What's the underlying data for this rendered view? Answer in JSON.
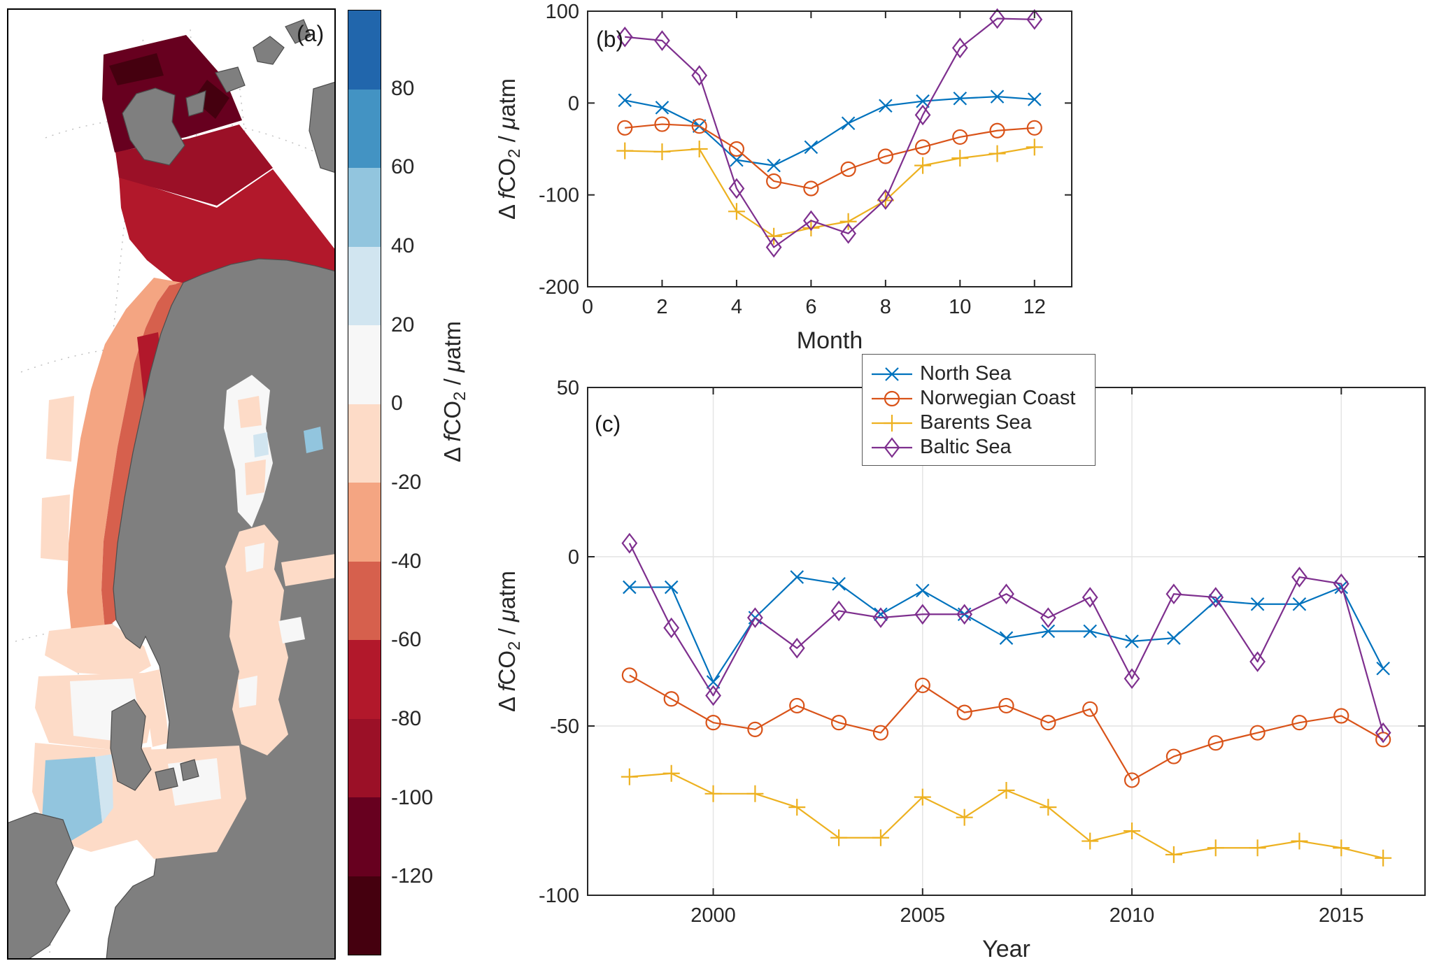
{
  "figure": {
    "panel_a_label": "(a)",
    "panel_b_label": "(b)",
    "panel_c_label": "(c)"
  },
  "axis_label": {
    "delta": "Δ ",
    "f": "f",
    "co": "CO",
    "sub": "2",
    "sep": " / ",
    "mu": "μ",
    "unit": "atm"
  },
  "colorbar": {
    "ticks": [
      80,
      60,
      40,
      20,
      0,
      -20,
      -40,
      -60,
      -80,
      -100,
      -120
    ],
    "segments_top_to_bottom": [
      "#2166ac",
      "#4393c3",
      "#92c5de",
      "#d1e5f0",
      "#f7f7f7",
      "#fddbc7",
      "#f4a582",
      "#d6604d",
      "#b2182b",
      "#9b1027",
      "#67001f",
      "#45000f"
    ]
  },
  "map": {
    "palette": {
      "ocean": "#ffffff",
      "land": "#7f7f7f",
      "graticule": "#bdbdbd",
      "frame": "#000000",
      "red_darkest": "#45000f",
      "red_dark": "#67001f",
      "red_deep": "#9b1027",
      "red": "#b2182b",
      "red_mid": "#d6604d",
      "red_light": "#f4a582",
      "red_pale": "#fddbc7",
      "neutral": "#f7f7f7",
      "blue_pale": "#d1e5f0",
      "blue_light": "#92c5de",
      "blue_mid": "#4393c3",
      "blue_deep": "#2166ac"
    }
  },
  "legend": {
    "items": [
      {
        "label": "North Sea",
        "marker": "x",
        "color": "#0072BD"
      },
      {
        "label": "Norwegian Coast",
        "marker": "o",
        "color": "#D95319"
      },
      {
        "label": "Barents Sea",
        "marker": "+",
        "color": "#EDB120"
      },
      {
        "label": "Baltic Sea",
        "marker": "d",
        "color": "#7E2F8E"
      }
    ]
  },
  "chart_data": [
    {
      "type": "line",
      "panel": "b",
      "title": "",
      "xlabel": "Month",
      "ylabel": "Δ fCO2 / μatm",
      "xlim": [
        0,
        13
      ],
      "ylim": [
        -200,
        100
      ],
      "xticks": [
        0,
        2,
        4,
        6,
        8,
        10,
        12
      ],
      "yticks": [
        -200,
        -100,
        0,
        100
      ],
      "grid": false,
      "legend_position": "none",
      "x": [
        1,
        2,
        3,
        4,
        5,
        6,
        7,
        8,
        9,
        10,
        11,
        12
      ],
      "series": [
        {
          "name": "North Sea",
          "marker": "x",
          "color": "#0072BD",
          "values": [
            3,
            -5,
            -25,
            -62,
            -68,
            -48,
            -22,
            -3,
            2,
            5,
            7,
            4
          ]
        },
        {
          "name": "Norwegian Coast",
          "marker": "o",
          "color": "#D95319",
          "values": [
            -27,
            -23,
            -25,
            -50,
            -85,
            -93,
            -72,
            -58,
            -48,
            -37,
            -30,
            -27
          ]
        },
        {
          "name": "Barents Sea",
          "marker": "+",
          "color": "#EDB120",
          "values": [
            -52,
            -53,
            -50,
            -118,
            -145,
            -136,
            -129,
            -106,
            -68,
            -60,
            -55,
            -48
          ]
        },
        {
          "name": "Baltic Sea",
          "marker": "d",
          "color": "#7E2F8E",
          "values": [
            72,
            68,
            30,
            -93,
            -157,
            -128,
            -142,
            -105,
            -13,
            60,
            92,
            91
          ]
        }
      ]
    },
    {
      "type": "line",
      "panel": "c",
      "title": "",
      "xlabel": "Year",
      "ylabel": "Δ fCO2 / μatm",
      "xlim": [
        1997,
        2017
      ],
      "ylim": [
        -100,
        50
      ],
      "xticks": [
        2000,
        2005,
        2010,
        2015
      ],
      "yticks": [
        -100,
        -50,
        0,
        50
      ],
      "grid": true,
      "legend_position": "northeast-outside-top",
      "x": [
        1998,
        1999,
        2000,
        2001,
        2002,
        2003,
        2004,
        2005,
        2006,
        2007,
        2008,
        2009,
        2010,
        2011,
        2012,
        2013,
        2014,
        2015,
        2016
      ],
      "series": [
        {
          "name": "North Sea",
          "marker": "x",
          "color": "#0072BD",
          "values": [
            -9,
            -9,
            -37,
            -18,
            -6,
            -8,
            -17,
            -10,
            -17,
            -24,
            -22,
            -22,
            -25,
            -24,
            -13,
            -14,
            -14,
            -9,
            -33
          ]
        },
        {
          "name": "Norwegian Coast",
          "marker": "o",
          "color": "#D95319",
          "values": [
            -35,
            -42,
            -49,
            -51,
            -44,
            -49,
            -52,
            -38,
            -46,
            -44,
            -49,
            -45,
            -66,
            -59,
            -55,
            -52,
            -49,
            -47,
            -54
          ]
        },
        {
          "name": "Barents Sea",
          "marker": "+",
          "color": "#EDB120",
          "values": [
            -65,
            -64,
            -70,
            -70,
            -74,
            -83,
            -83,
            -71,
            -77,
            -69,
            -74,
            -84,
            -81,
            -88,
            -86,
            -86,
            -84,
            -86,
            -89
          ]
        },
        {
          "name": "Baltic Sea",
          "marker": "d",
          "color": "#7E2F8E",
          "values": [
            4,
            -21,
            -41,
            -18,
            -27,
            -16,
            -18,
            -17,
            -17,
            -11,
            -18,
            -12,
            -36,
            -11,
            -12,
            -31,
            -6,
            -8,
            -52
          ]
        }
      ]
    }
  ]
}
